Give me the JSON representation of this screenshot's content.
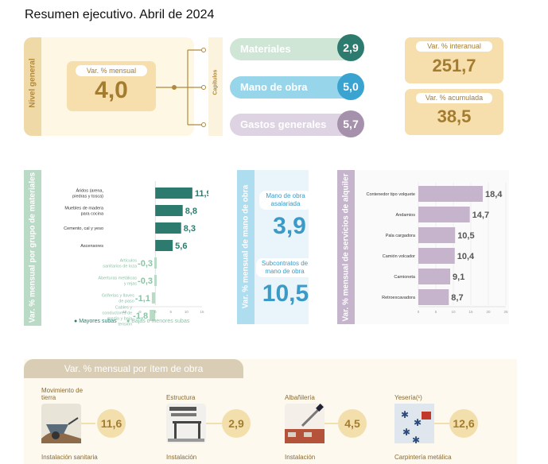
{
  "title": "Resumen ejecutivo. Abril de 2024",
  "nivel_general": {
    "vertical_label": "Nivel general",
    "monthly_label": "Var. % mensual",
    "monthly_value": "4,0",
    "capitulos_label": "Capítulos"
  },
  "capitulos": [
    {
      "label": "Materiales",
      "value": "2,9",
      "pill_color": "#cfe5d6",
      "circle_color": "#2d7b6e"
    },
    {
      "label": "Mano de obra",
      "value": "5,0",
      "pill_color": "#97d6ea",
      "circle_color": "#3aa3d0"
    },
    {
      "label": "Gastos generales",
      "value": "5,7",
      "pill_color": "#ddd3e2",
      "circle_color": "#a691ad"
    }
  ],
  "variaciones": {
    "interanual_label": "Var. % interanual",
    "interanual_value": "251,7",
    "acumulada_label": "Var. % acumulada",
    "acumulada_value": "38,5"
  },
  "mano_de_obra": {
    "vertical_label": "Var. % mensual de mano de obra",
    "asalariada_label": "Mano de obra asalariada",
    "asalariada_value": "3,9",
    "subcontratos_label": "Subcontratos de mano de obra",
    "subcontratos_value": "10,5"
  },
  "chart_data": [
    {
      "type": "bar",
      "orientation": "horizontal",
      "title": "Var. % mensual por grupo de materiales",
      "categories": [
        "Áridos (arena, piedras y tosca)",
        "Muebles de madera para cocina",
        "Cemento, cal y yeso",
        "Ascensores",
        "Artículos sanitarios de loza",
        "Aberturas metálicas y rejas",
        "Griferías y llaves de paso",
        "Cables y conductores de media y baja tensión"
      ],
      "values": [
        11.9,
        8.8,
        8.3,
        5.6,
        -0.3,
        -0.3,
        -1.1,
        -1.8
      ],
      "value_labels": [
        "11,9",
        "8,8",
        "8,3",
        "5,6",
        "-0,3",
        "-0,3",
        "-1,1",
        "-1,8"
      ],
      "xlim": [
        -10,
        15
      ],
      "x_ticks": [
        "-10",
        "-5",
        "0",
        "5",
        "10",
        "15"
      ],
      "legend": [
        "Mayores subas",
        "Bajas o menores subas"
      ],
      "colors": {
        "high": "#2d7b6e",
        "low": "#b9dbc6"
      }
    },
    {
      "type": "bar",
      "orientation": "horizontal",
      "title": "Var. % mensual de servicios de alquiler",
      "categories": [
        "Contenedor tipo volquete",
        "Andamios",
        "Pala cargadora",
        "Camión volcador",
        "Camioneta",
        "Retroexcavadora"
      ],
      "values": [
        18.4,
        14.7,
        10.5,
        10.4,
        9.1,
        8.7
      ],
      "value_labels": [
        "18,4",
        "14,7",
        "10,5",
        "10,4",
        "9,1",
        "8,7"
      ],
      "xlim": [
        0,
        25
      ],
      "x_ticks": [
        "0",
        "5",
        "10",
        "15",
        "20",
        "25"
      ],
      "colors": {
        "bar": "#c6b4cc"
      }
    }
  ],
  "items_obra": {
    "title": "Var. % mensual por ítem de obra",
    "items": [
      {
        "name": "Movimiento de tierra",
        "value": "11,6"
      },
      {
        "name": "Estructura",
        "value": "2,9"
      },
      {
        "name": "Albañilería",
        "value": "4,5"
      },
      {
        "name": "Yesería(¹)",
        "value": "12,6"
      }
    ],
    "next_row": [
      "Instalación sanitaria",
      "Instalación",
      "Instalación",
      "Carpintería metálica"
    ]
  }
}
